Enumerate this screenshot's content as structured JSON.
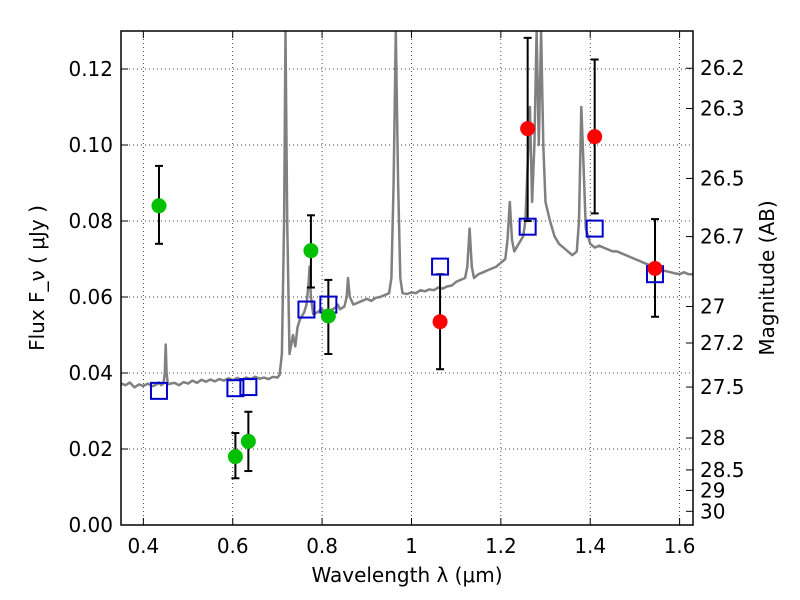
{
  "chart_data": {
    "type": "scatter",
    "xlabel": "Wavelength  λ (μm)",
    "ylabel": "Flux  F_ν  ( μJy )",
    "y2label": "Magnitude (AB)",
    "xlim": [
      0.35,
      1.63
    ],
    "ylim": [
      0.0,
      0.13
    ],
    "grid": true,
    "x_ticks": [
      0.4,
      0.6,
      0.8,
      1.0,
      1.2,
      1.4,
      1.6
    ],
    "x_tick_labels": [
      "0.4",
      "0.6",
      "0.8",
      "1",
      "1.2",
      "1.4",
      "1.6"
    ],
    "y_ticks": [
      0.0,
      0.02,
      0.04,
      0.06,
      0.08,
      0.1,
      0.12
    ],
    "y_tick_labels": [
      "0.00",
      "0.02",
      "0.04",
      "0.06",
      "0.08",
      "0.10",
      "0.12"
    ],
    "magnitude_ticks": [
      {
        "label": "26.2",
        "flux": 0.1202
      },
      {
        "label": "26.3",
        "flux": 0.1096
      },
      {
        "label": "26.5",
        "flux": 0.0912
      },
      {
        "label": "26.7",
        "flux": 0.0759
      },
      {
        "label": "27",
        "flux": 0.0575
      },
      {
        "label": "27.2",
        "flux": 0.0479
      },
      {
        "label": "27.5",
        "flux": 0.0363
      },
      {
        "label": "28",
        "flux": 0.0229
      },
      {
        "label": "28.5",
        "flux": 0.0145
      },
      {
        "label": "29",
        "flux": 0.0091
      },
      {
        "label": "30",
        "flux": 0.0036
      }
    ],
    "series": [
      {
        "kind": "line",
        "color": "#808080",
        "points": [
          [
            0.35,
            0.0372
          ],
          [
            0.36,
            0.0368
          ],
          [
            0.37,
            0.0375
          ],
          [
            0.38,
            0.0362
          ],
          [
            0.39,
            0.037
          ],
          [
            0.4,
            0.0366
          ],
          [
            0.41,
            0.0372
          ],
          [
            0.42,
            0.0365
          ],
          [
            0.43,
            0.037
          ],
          [
            0.435,
            0.0375
          ],
          [
            0.44,
            0.0368
          ],
          [
            0.445,
            0.0372
          ],
          [
            0.448,
            0.04
          ],
          [
            0.45,
            0.0475
          ],
          [
            0.452,
            0.04
          ],
          [
            0.455,
            0.037
          ],
          [
            0.46,
            0.0372
          ],
          [
            0.47,
            0.0374
          ],
          [
            0.48,
            0.0368
          ],
          [
            0.49,
            0.0376
          ],
          [
            0.5,
            0.0372
          ],
          [
            0.51,
            0.038
          ],
          [
            0.52,
            0.0374
          ],
          [
            0.53,
            0.0382
          ],
          [
            0.54,
            0.0377
          ],
          [
            0.55,
            0.0383
          ],
          [
            0.56,
            0.0378
          ],
          [
            0.57,
            0.0384
          ],
          [
            0.58,
            0.038
          ],
          [
            0.59,
            0.0386
          ],
          [
            0.6,
            0.0381
          ],
          [
            0.61,
            0.0387
          ],
          [
            0.62,
            0.0382
          ],
          [
            0.63,
            0.0388
          ],
          [
            0.64,
            0.0384
          ],
          [
            0.65,
            0.039
          ],
          [
            0.66,
            0.0385
          ],
          [
            0.67,
            0.0388
          ],
          [
            0.68,
            0.0384
          ],
          [
            0.69,
            0.039
          ],
          [
            0.7,
            0.0388
          ],
          [
            0.705,
            0.0395
          ],
          [
            0.71,
            0.045
          ],
          [
            0.715,
            0.08
          ],
          [
            0.718,
            0.13
          ],
          [
            0.722,
            0.08
          ],
          [
            0.727,
            0.045
          ],
          [
            0.735,
            0.05
          ],
          [
            0.74,
            0.047
          ],
          [
            0.745,
            0.052
          ],
          [
            0.75,
            0.054
          ],
          [
            0.76,
            0.056
          ],
          [
            0.765,
            0.058
          ],
          [
            0.77,
            0.064
          ],
          [
            0.772,
            0.068
          ],
          [
            0.775,
            0.06
          ],
          [
            0.78,
            0.0555
          ],
          [
            0.79,
            0.056
          ],
          [
            0.8,
            0.057
          ],
          [
            0.805,
            0.0555
          ],
          [
            0.81,
            0.056
          ],
          [
            0.82,
            0.0565
          ],
          [
            0.83,
            0.0572
          ],
          [
            0.835,
            0.058
          ],
          [
            0.84,
            0.0568
          ],
          [
            0.85,
            0.0575
          ],
          [
            0.855,
            0.06
          ],
          [
            0.858,
            0.065
          ],
          [
            0.862,
            0.06
          ],
          [
            0.87,
            0.058
          ],
          [
            0.88,
            0.0585
          ],
          [
            0.89,
            0.059
          ],
          [
            0.9,
            0.0595
          ],
          [
            0.91,
            0.059
          ],
          [
            0.92,
            0.0598
          ],
          [
            0.93,
            0.06
          ],
          [
            0.94,
            0.0605
          ],
          [
            0.95,
            0.061
          ],
          [
            0.955,
            0.065
          ],
          [
            0.96,
            0.09
          ],
          [
            0.965,
            0.13
          ],
          [
            0.97,
            0.09
          ],
          [
            0.975,
            0.065
          ],
          [
            0.98,
            0.061
          ],
          [
            0.99,
            0.0608
          ],
          [
            1.0,
            0.0612
          ],
          [
            1.01,
            0.061
          ],
          [
            1.02,
            0.0618
          ],
          [
            1.03,
            0.0615
          ],
          [
            1.04,
            0.062
          ],
          [
            1.05,
            0.0618
          ],
          [
            1.06,
            0.0625
          ],
          [
            1.07,
            0.0622
          ],
          [
            1.08,
            0.0628
          ],
          [
            1.09,
            0.063
          ],
          [
            1.1,
            0.064
          ],
          [
            1.11,
            0.0645
          ],
          [
            1.12,
            0.065
          ],
          [
            1.125,
            0.068
          ],
          [
            1.13,
            0.078
          ],
          [
            1.135,
            0.068
          ],
          [
            1.14,
            0.065
          ],
          [
            1.15,
            0.066
          ],
          [
            1.16,
            0.0665
          ],
          [
            1.17,
            0.067
          ],
          [
            1.18,
            0.0675
          ],
          [
            1.19,
            0.068
          ],
          [
            1.2,
            0.069
          ],
          [
            1.21,
            0.07
          ],
          [
            1.215,
            0.075
          ],
          [
            1.22,
            0.085
          ],
          [
            1.225,
            0.075
          ],
          [
            1.23,
            0.072
          ],
          [
            1.24,
            0.074
          ],
          [
            1.25,
            0.076
          ],
          [
            1.255,
            0.08
          ],
          [
            1.26,
            0.095
          ],
          [
            1.265,
            0.11
          ],
          [
            1.27,
            0.085
          ],
          [
            1.275,
            0.1
          ],
          [
            1.28,
            0.13
          ],
          [
            1.285,
            0.1
          ],
          [
            1.29,
            0.13
          ],
          [
            1.295,
            0.1
          ],
          [
            1.3,
            0.085
          ],
          [
            1.31,
            0.08
          ],
          [
            1.32,
            0.076
          ],
          [
            1.33,
            0.074
          ],
          [
            1.34,
            0.073
          ],
          [
            1.35,
            0.072
          ],
          [
            1.36,
            0.071
          ],
          [
            1.37,
            0.072
          ],
          [
            1.375,
            0.08
          ],
          [
            1.38,
            0.11
          ],
          [
            1.385,
            0.095
          ],
          [
            1.39,
            0.078
          ],
          [
            1.4,
            0.074
          ],
          [
            1.41,
            0.073
          ],
          [
            1.42,
            0.0735
          ],
          [
            1.43,
            0.073
          ],
          [
            1.44,
            0.0725
          ],
          [
            1.45,
            0.072
          ],
          [
            1.46,
            0.072
          ],
          [
            1.47,
            0.0715
          ],
          [
            1.48,
            0.071
          ],
          [
            1.49,
            0.0705
          ],
          [
            1.5,
            0.07
          ],
          [
            1.51,
            0.0695
          ],
          [
            1.52,
            0.069
          ],
          [
            1.53,
            0.0685
          ],
          [
            1.54,
            0.068
          ],
          [
            1.55,
            0.0675
          ],
          [
            1.56,
            0.067
          ],
          [
            1.57,
            0.0668
          ],
          [
            1.58,
            0.0665
          ],
          [
            1.59,
            0.0662
          ],
          [
            1.6,
            0.066
          ],
          [
            1.61,
            0.0665
          ],
          [
            1.62,
            0.066
          ],
          [
            1.63,
            0.066
          ]
        ]
      },
      {
        "kind": "points-errorbars",
        "color": "#00c000",
        "points": [
          {
            "x": 0.435,
            "y": 0.084,
            "lo": 0.074,
            "hi": 0.0945
          },
          {
            "x": 0.606,
            "y": 0.018,
            "lo": 0.0123,
            "hi": 0.0242
          },
          {
            "x": 0.635,
            "y": 0.022,
            "lo": 0.0142,
            "hi": 0.0298
          },
          {
            "x": 0.775,
            "y": 0.0722,
            "lo": 0.0625,
            "hi": 0.0815
          },
          {
            "x": 0.814,
            "y": 0.055,
            "lo": 0.045,
            "hi": 0.0645
          }
        ]
      },
      {
        "kind": "points-errorbars",
        "color": "#ff0000",
        "points": [
          {
            "x": 1.064,
            "y": 0.0535,
            "lo": 0.041,
            "hi": 0.066
          },
          {
            "x": 1.26,
            "y": 0.1043,
            "lo": 0.08,
            "hi": 0.1282
          },
          {
            "x": 1.41,
            "y": 0.1022,
            "lo": 0.082,
            "hi": 0.1225
          },
          {
            "x": 1.545,
            "y": 0.0675,
            "lo": 0.0548,
            "hi": 0.0805
          }
        ]
      },
      {
        "kind": "open-squares",
        "color": "#0000cc",
        "points": [
          {
            "x": 0.435,
            "y": 0.0353
          },
          {
            "x": 0.606,
            "y": 0.036
          },
          {
            "x": 0.635,
            "y": 0.0363
          },
          {
            "x": 0.765,
            "y": 0.0567
          },
          {
            "x": 0.814,
            "y": 0.058
          },
          {
            "x": 1.064,
            "y": 0.068
          },
          {
            "x": 1.26,
            "y": 0.0785
          },
          {
            "x": 1.41,
            "y": 0.078
          },
          {
            "x": 1.545,
            "y": 0.066
          }
        ]
      }
    ]
  }
}
